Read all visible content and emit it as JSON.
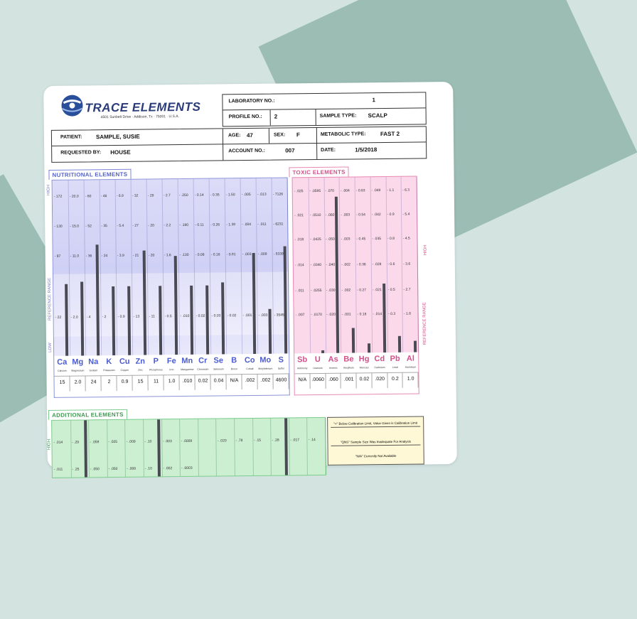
{
  "header": {
    "brand": "TRACE ELEMENTS",
    "address": "4501 Sunbelt Drive · Addison, Tx · 75001 · U.S.A.",
    "laboratory_no_label": "LABORATORY NO.:",
    "laboratory_no": "1",
    "profile_no_label": "PROFILE NO.:",
    "profile_no": "2",
    "sample_type_label": "SAMPLE TYPE:",
    "sample_type": "SCALP",
    "patient_label": "PATIENT:",
    "patient": "SAMPLE, SUSIE",
    "age_label": "AGE:",
    "age": "47",
    "sex_label": "SEX:",
    "sex": "F",
    "metabolic_type_label": "METABOLIC TYPE:",
    "metabolic_type": "FAST 2",
    "requested_by_label": "REQUESTED BY:",
    "requested_by": "HOUSE",
    "account_no_label": "ACCOUNT NO.:",
    "account_no": "007",
    "date_label": "DATE:",
    "date": "1/5/2018"
  },
  "nutritional": {
    "title": "NUTRITIONAL ELEMENTS",
    "side_high": "HIGH",
    "side_ref": "REFERENCE RANGE",
    "side_low": "LOW",
    "elements": [
      {
        "sym": "Ca",
        "name": "Calcium",
        "result": "15",
        "level": 0.43,
        "ticks": [
          "172",
          "130",
          "87",
          "",
          "22"
        ]
      },
      {
        "sym": "Mg",
        "name": "Magnesium",
        "result": "2.0",
        "level": 0.44,
        "ticks": [
          "20.0",
          "15.0",
          "11.0",
          "",
          "2.0"
        ]
      },
      {
        "sym": "Na",
        "name": "Sodium",
        "result": "24",
        "level": 0.66,
        "ticks": [
          "60",
          "52",
          "36",
          "",
          "4"
        ]
      },
      {
        "sym": "K",
        "name": "Potassium",
        "result": "2",
        "level": 0.41,
        "ticks": [
          "46",
          "35",
          "24",
          "",
          "2"
        ]
      },
      {
        "sym": "Cu",
        "name": "Copper",
        "result": "0.9",
        "level": 0.41,
        "ticks": [
          "6.9",
          "5.4",
          "3.9",
          "",
          "0.9"
        ]
      },
      {
        "sym": "Zn",
        "name": "Zinc",
        "result": "15",
        "level": 0.62,
        "ticks": [
          "32",
          "27",
          "21",
          "",
          "13"
        ]
      },
      {
        "sym": "P",
        "name": "Phosphorus",
        "result": "11",
        "level": 0.41,
        "ticks": [
          "29",
          "20",
          "20",
          "",
          "11"
        ]
      },
      {
        "sym": "Fe",
        "name": "Iron",
        "result": "1.0",
        "level": 0.59,
        "ticks": [
          "2.7",
          "2.2",
          "1.6",
          "",
          "0.5"
        ]
      },
      {
        "sym": "Mn",
        "name": "Manganese",
        "result": ".010",
        "level": 0.41,
        "ticks": [
          ".250",
          ".190",
          ".130",
          "",
          ".010"
        ]
      },
      {
        "sym": "Cr",
        "name": "Chromium",
        "result": "0.02",
        "level": 0.41,
        "ticks": [
          "0.14",
          "0.11",
          "0.08",
          "",
          "0.02"
        ]
      },
      {
        "sym": "Se",
        "name": "Selenium",
        "result": "0.04",
        "level": 0.43,
        "ticks": [
          "0.35",
          "0.26",
          "0.16",
          "",
          "0.03"
        ]
      },
      {
        "sym": "B",
        "name": "Boron",
        "result": "N/A",
        "level": 0,
        "ticks": [
          "1.50",
          "1.39",
          "0.91",
          "",
          "0.02"
        ]
      },
      {
        "sym": "Co",
        "name": "Cobalt",
        "result": ".002",
        "level": 0.6,
        "ticks": [
          ".005",
          ".004",
          ".003",
          "",
          ".001"
        ]
      },
      {
        "sym": "Mo",
        "name": "Molybdenum",
        "result": ".002",
        "level": 0.27,
        "ticks": [
          ".013",
          ".011",
          ".009",
          "",
          ".003"
        ]
      },
      {
        "sym": "S",
        "name": "Sulfur",
        "result": "4600",
        "level": 0.64,
        "ticks": [
          "7126",
          "6231",
          "5339",
          "",
          "3545"
        ]
      }
    ]
  },
  "toxic": {
    "title": "TOXIC ELEMENTS",
    "side_high": "HIGH",
    "side_ref": "REFERENCE RANGE",
    "elements": [
      {
        "sym": "Sb",
        "name": "Antimony",
        "result": "N/A",
        "level": 0,
        "ticks": [
          ".025",
          ".021",
          ".018",
          ".014",
          ".011",
          ".007"
        ]
      },
      {
        "sym": "U",
        "name": "Uranium",
        "result": ".0060",
        "level": 0.02,
        "ticks": [
          ".0595",
          ".0510",
          ".0425",
          ".0340",
          ".0255",
          ".0170"
        ]
      },
      {
        "sym": "As",
        "name": "Arsenic",
        "result": ".060",
        "level": 0.93,
        "ticks": [
          ".070",
          ".060",
          ".050",
          ".040",
          ".030",
          ".020"
        ]
      },
      {
        "sym": "Be",
        "name": "Beryllium",
        "result": ".001",
        "level": 0.15,
        "ticks": [
          ".004",
          ".003",
          ".003",
          ".002",
          ".002",
          ".001"
        ]
      },
      {
        "sym": "Hg",
        "name": "Mercury",
        "result": "0.02",
        "level": 0.06,
        "ticks": [
          "0.63",
          "0.54",
          "0.45",
          "0.36",
          "0.27",
          "0.18"
        ]
      },
      {
        "sym": "Cd",
        "name": "Cadmium",
        "result": ".020",
        "level": 0.41,
        "ticks": [
          ".049",
          ".042",
          ".035",
          ".028",
          ".021",
          ".014"
        ]
      },
      {
        "sym": "Pb",
        "name": "Lead",
        "result": "0.2",
        "level": 0.1,
        "ticks": [
          "1.1",
          "0.9",
          "0.8",
          "0.6",
          "0.5",
          "0.3"
        ]
      },
      {
        "sym": "Al",
        "name": "Aluminum",
        "result": "1.0",
        "level": 0.07,
        "ticks": [
          "6.3",
          "5.4",
          "4.5",
          "3.6",
          "2.7",
          "1.8"
        ]
      }
    ]
  },
  "additional": {
    "title": "ADDITIONAL ELEMENTS",
    "side_high": "HIGH",
    "row1_ticks": [
      ".014",
      ".29",
      ".059",
      ".025",
      ".009",
      ".10",
      ".003",
      ".0009",
      "",
      ".020",
      ".78",
      ".15",
      ".28",
      ".017",
      ".14"
    ],
    "row2_ticks": [
      ".011",
      ".25",
      ".050",
      ".050",
      ".008",
      ".10",
      ".002",
      ".0003",
      "",
      "",
      "",
      "",
      "",
      "",
      ""
    ],
    "bar_cols": [
      1,
      5,
      12
    ]
  },
  "legend": {
    "line1": "\"<\" Below Calibration Limit, Value Given is Calibration Limit",
    "line2": "\"QNS\" Sample Size Was Inadequate For Analysis",
    "line3": "\"N/A\" Currently Not Available"
  }
}
